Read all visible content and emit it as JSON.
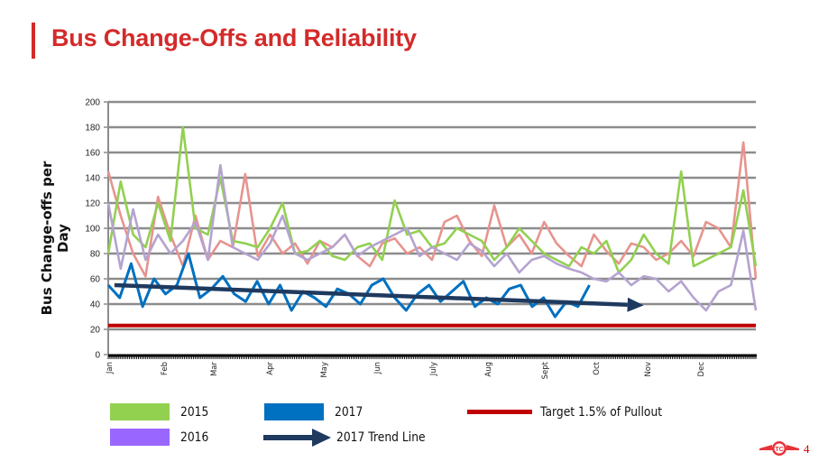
{
  "slide": {
    "title": "Bus Change-Offs and Reliability",
    "page_number": "4",
    "logo_icon": "ttc-logo-icon"
  },
  "colors": {
    "title": "#d42a2a",
    "s2015": "#92d050",
    "s2016": "#b4a3d0",
    "s2016_legend": "#9966ff",
    "s2017": "#0070c0",
    "unlabeled": "#e6948f",
    "trend": "#1f3a5f",
    "target": "#c00000",
    "grid": "#8c8c8c"
  },
  "legend": {
    "items": [
      {
        "label": "2015",
        "kind": "swatch",
        "color": "#92d050"
      },
      {
        "label": "2017",
        "kind": "swatch",
        "color": "#0070c0"
      },
      {
        "label": "Target 1.5% of Pullout",
        "kind": "line",
        "color": "#c00000"
      },
      {
        "label": "2016",
        "kind": "swatch",
        "color": "#9966ff"
      },
      {
        "label": "2017 Trend Line",
        "kind": "arrow",
        "color": "#1f3a5f"
      }
    ]
  },
  "chart_data": {
    "type": "line",
    "title": "",
    "xlabel": "",
    "ylabel": "Bus Change-offs per Day",
    "ylim": [
      0,
      200
    ],
    "yticks": [
      0,
      20,
      40,
      60,
      80,
      100,
      120,
      140,
      160,
      180,
      200
    ],
    "categories": [
      "Jan",
      "Feb",
      "Mar",
      "Apr",
      "May",
      "Jun",
      "July",
      "Aug",
      "Sept",
      "Oct",
      "Nov",
      "Dec"
    ],
    "grid": true,
    "legend_position": "bottom",
    "x_unit": "week of year (0-52)",
    "series": [
      {
        "name": "Unlabeled (pink)",
        "color": "#e6948f",
        "x_start": 0,
        "values": [
          145,
          110,
          80,
          62,
          125,
          95,
          70,
          110,
          75,
          90,
          85,
          143,
          78,
          95,
          80,
          88,
          72,
          90,
          85,
          95,
          78,
          70,
          88,
          92,
          80,
          85,
          75,
          105,
          110,
          90,
          78,
          118,
          85,
          95,
          80,
          105,
          88,
          78,
          70,
          95,
          82,
          72,
          88,
          85,
          75,
          80,
          90,
          78,
          105,
          100,
          85,
          168,
          60
        ]
      },
      {
        "name": "2015",
        "color": "#92d050",
        "x_start": 0,
        "values": [
          80,
          137,
          95,
          85,
          120,
          90,
          180,
          100,
          95,
          140,
          90,
          88,
          85,
          100,
          120,
          80,
          82,
          90,
          78,
          75,
          85,
          88,
          75,
          122,
          95,
          98,
          85,
          88,
          100,
          95,
          90,
          75,
          85,
          100,
          90,
          80,
          75,
          70,
          85,
          80,
          90,
          65,
          75,
          95,
          80,
          72,
          145,
          70,
          75,
          80,
          85,
          130,
          70
        ]
      },
      {
        "name": "2016",
        "color": "#b4a3d0",
        "x_start": 0,
        "values": [
          120,
          68,
          115,
          75,
          95,
          80,
          90,
          105,
          75,
          150,
          85,
          80,
          75,
          88,
          110,
          80,
          75,
          80,
          85,
          95,
          78,
          85,
          90,
          95,
          100,
          78,
          85,
          80,
          75,
          88,
          82,
          70,
          80,
          65,
          75,
          78,
          72,
          68,
          65,
          60,
          58,
          65,
          55,
          62,
          60,
          50,
          58,
          45,
          35,
          50,
          55,
          98,
          35
        ]
      },
      {
        "name": "2017",
        "color": "#0070c0",
        "x_start": 0,
        "values": [
          55,
          45,
          72,
          38,
          60,
          48,
          55,
          80,
          45,
          52,
          62,
          48,
          42,
          58,
          40,
          55,
          35,
          50,
          45,
          38,
          52,
          48,
          40,
          55,
          60,
          45,
          35,
          48,
          55,
          42,
          50,
          58,
          38,
          45,
          40,
          52,
          55,
          38,
          45,
          30,
          42,
          38,
          55
        ]
      },
      {
        "name": "2017 Trend Line",
        "color": "#1f3a5f",
        "x": [
          0.5,
          43
        ],
        "values": [
          55,
          39
        ]
      },
      {
        "name": "Target 1.5% of Pullout",
        "color": "#c00000",
        "x": [
          0,
          52
        ],
        "values": [
          23,
          23
        ]
      }
    ]
  }
}
